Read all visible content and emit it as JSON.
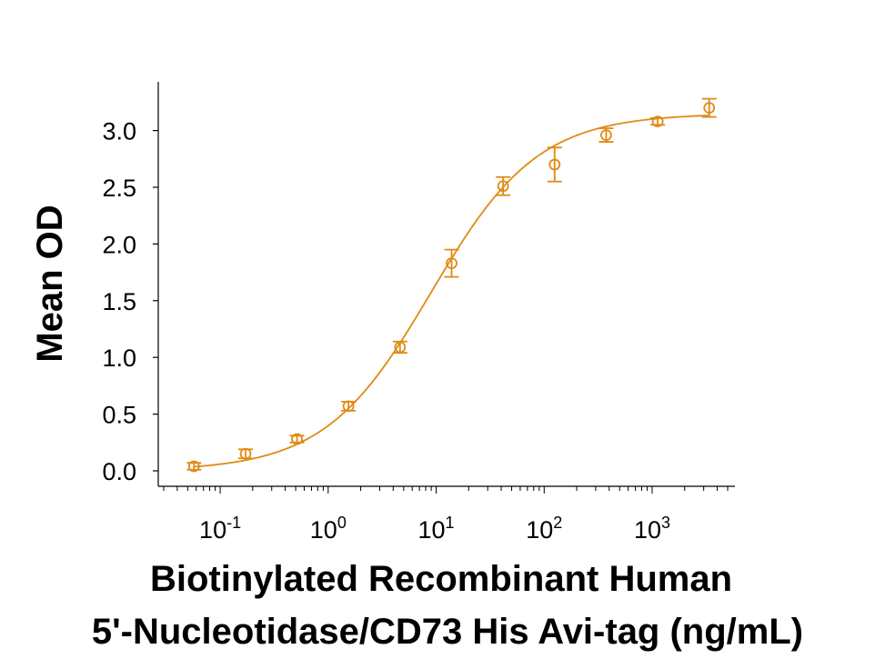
{
  "chart_data": {
    "type": "scatter",
    "title": "",
    "xlabel_line1": "Biotinylated Recombinant Human",
    "xlabel_line2": "5'-Nucleotidase/CD73 His Avi-tag (ng/mL)",
    "ylabel": "Mean OD",
    "x_scale": "log",
    "xlim": [
      0.03,
      5000
    ],
    "ylim": [
      -0.12,
      3.45
    ],
    "y_ticks": [
      0.0,
      0.5,
      1.0,
      1.5,
      2.0,
      2.5,
      3.0
    ],
    "y_tick_labels": [
      "0.0",
      "0.5",
      "1.0",
      "1.5",
      "2.0",
      "2.5",
      "3.0"
    ],
    "x_ticks": [
      {
        "base": "10",
        "exp": "-1"
      },
      {
        "base": "10",
        "exp": "0"
      },
      {
        "base": "10",
        "exp": "1"
      },
      {
        "base": "10",
        "exp": "2"
      },
      {
        "base": "10",
        "exp": "3"
      }
    ],
    "grid": false,
    "color": "#E08A14",
    "series": [
      {
        "points": [
          {
            "x": 0.0572,
            "y": 0.04,
            "err": 0.03
          },
          {
            "x": 0.172,
            "y": 0.15,
            "err": 0.04
          },
          {
            "x": 0.515,
            "y": 0.28,
            "err": 0.03
          },
          {
            "x": 1.54,
            "y": 0.57,
            "err": 0.04
          },
          {
            "x": 4.63,
            "y": 1.09,
            "err": 0.05
          },
          {
            "x": 13.9,
            "y": 1.83,
            "err": 0.12
          },
          {
            "x": 41.7,
            "y": 2.51,
            "err": 0.08
          },
          {
            "x": 125,
            "y": 2.7,
            "err": 0.15
          },
          {
            "x": 375,
            "y": 2.96,
            "err": 0.06
          },
          {
            "x": 1125,
            "y": 3.08,
            "err": 0.03
          },
          {
            "x": 3375,
            "y": 3.2,
            "err": 0.08
          }
        ],
        "fit": {
          "model": "4PL",
          "bottom": 0.0,
          "top": 3.15,
          "ec50": 9.0,
          "hill": 0.88
        }
      }
    ]
  }
}
